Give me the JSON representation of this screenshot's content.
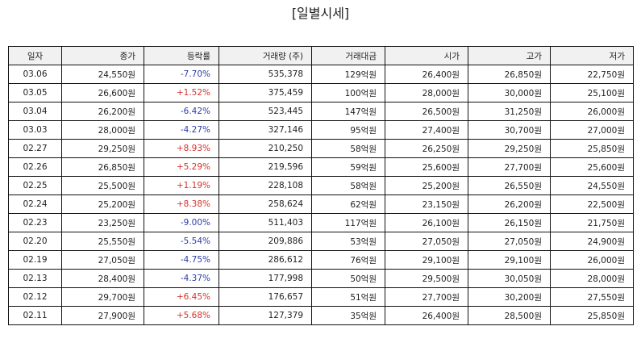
{
  "title": "[일별시세]",
  "colors": {
    "up": "#d8322d",
    "down": "#2c3ea8",
    "header_bg": "#f1f1f1"
  },
  "columns": [
    "일자",
    "종가",
    "등락률",
    "거래량 (주)",
    "거래대금",
    "시가",
    "고가",
    "저가"
  ],
  "rows": [
    {
      "date": "03.06",
      "close": "24,550원",
      "change": "-7.70%",
      "dir": "down",
      "volume": "535,378",
      "amount": "129억원",
      "open": "26,400원",
      "high": "26,850원",
      "low": "22,750원"
    },
    {
      "date": "03.05",
      "close": "26,600원",
      "change": "+1.52%",
      "dir": "up",
      "volume": "375,459",
      "amount": "100억원",
      "open": "28,000원",
      "high": "30,000원",
      "low": "25,100원"
    },
    {
      "date": "03.04",
      "close": "26,200원",
      "change": "-6.42%",
      "dir": "down",
      "volume": "523,445",
      "amount": "147억원",
      "open": "26,500원",
      "high": "31,250원",
      "low": "26,000원"
    },
    {
      "date": "03.03",
      "close": "28,000원",
      "change": "-4.27%",
      "dir": "down",
      "volume": "327,146",
      "amount": "95억원",
      "open": "27,400원",
      "high": "30,700원",
      "low": "27,000원"
    },
    {
      "date": "02.27",
      "close": "29,250원",
      "change": "+8.93%",
      "dir": "up",
      "volume": "210,250",
      "amount": "58억원",
      "open": "26,250원",
      "high": "29,250원",
      "low": "25,850원"
    },
    {
      "date": "02.26",
      "close": "26,850원",
      "change": "+5.29%",
      "dir": "up",
      "volume": "219,596",
      "amount": "59억원",
      "open": "25,600원",
      "high": "27,700원",
      "low": "25,600원"
    },
    {
      "date": "02.25",
      "close": "25,500원",
      "change": "+1.19%",
      "dir": "up",
      "volume": "228,108",
      "amount": "58억원",
      "open": "25,200원",
      "high": "26,550원",
      "low": "24,550원"
    },
    {
      "date": "02.24",
      "close": "25,200원",
      "change": "+8.38%",
      "dir": "up",
      "volume": "258,624",
      "amount": "62억원",
      "open": "23,150원",
      "high": "26,200원",
      "low": "22,500원"
    },
    {
      "date": "02.23",
      "close": "23,250원",
      "change": "-9.00%",
      "dir": "down",
      "volume": "511,403",
      "amount": "117억원",
      "open": "26,100원",
      "high": "26,150원",
      "low": "21,750원"
    },
    {
      "date": "02.20",
      "close": "25,550원",
      "change": "-5.54%",
      "dir": "down",
      "volume": "209,886",
      "amount": "53억원",
      "open": "27,050원",
      "high": "27,050원",
      "low": "24,900원"
    },
    {
      "date": "02.19",
      "close": "27,050원",
      "change": "-4.75%",
      "dir": "down",
      "volume": "286,612",
      "amount": "76억원",
      "open": "29,100원",
      "high": "29,100원",
      "low": "26,000원"
    },
    {
      "date": "02.13",
      "close": "28,400원",
      "change": "-4.37%",
      "dir": "down",
      "volume": "177,998",
      "amount": "50억원",
      "open": "29,500원",
      "high": "30,050원",
      "low": "28,000원"
    },
    {
      "date": "02.12",
      "close": "29,700원",
      "change": "+6.45%",
      "dir": "up",
      "volume": "176,657",
      "amount": "51억원",
      "open": "27,700원",
      "high": "30,200원",
      "low": "27,550원"
    },
    {
      "date": "02.11",
      "close": "27,900원",
      "change": "+5.68%",
      "dir": "up",
      "volume": "127,379",
      "amount": "35억원",
      "open": "26,400원",
      "high": "28,500원",
      "low": "25,850원"
    }
  ]
}
